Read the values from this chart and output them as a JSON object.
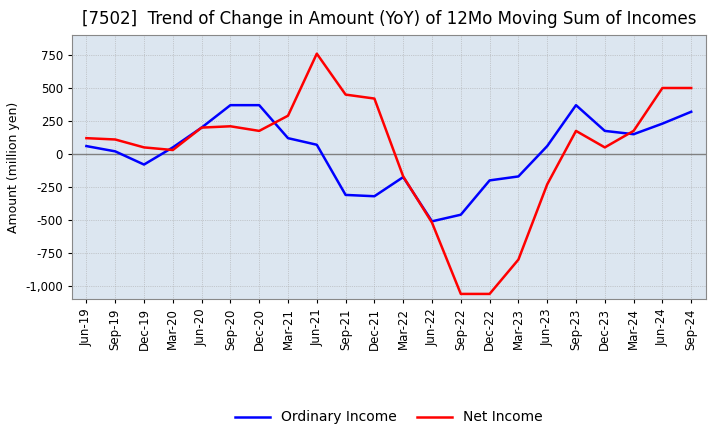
{
  "title": "[7502]  Trend of Change in Amount (YoY) of 12Mo Moving Sum of Incomes",
  "ylabel": "Amount (million yen)",
  "x_labels": [
    "Jun-19",
    "Sep-19",
    "Dec-19",
    "Mar-20",
    "Jun-20",
    "Sep-20",
    "Dec-20",
    "Mar-21",
    "Jun-21",
    "Sep-21",
    "Dec-21",
    "Mar-22",
    "Jun-22",
    "Sep-22",
    "Dec-22",
    "Mar-23",
    "Jun-23",
    "Sep-23",
    "Dec-23",
    "Mar-24",
    "Jun-24",
    "Sep-24"
  ],
  "ordinary_income": [
    60,
    20,
    -80,
    50,
    200,
    370,
    370,
    120,
    70,
    -310,
    -320,
    -175,
    -510,
    -460,
    -200,
    -170,
    60,
    370,
    175,
    150,
    230,
    320
  ],
  "net_income": [
    120,
    110,
    50,
    30,
    200,
    210,
    175,
    290,
    760,
    450,
    420,
    -170,
    -520,
    -1060,
    -1060,
    -800,
    -230,
    175,
    50,
    175,
    500,
    500
  ],
  "ordinary_color": "#0000ff",
  "net_color": "#ff0000",
  "bg_color": "#ffffff",
  "plot_bg_color": "#dce6f0",
  "grid_color": "#aaaaaa",
  "zero_line_color": "#808080",
  "ylim": [
    -1100,
    900
  ],
  "yticks": [
    -1000,
    -750,
    -500,
    -250,
    0,
    250,
    500,
    750
  ],
  "ytick_labels": [
    "-1,000",
    "-750",
    "-500",
    "-250",
    "0",
    "250",
    "500",
    "750"
  ],
  "title_fontsize": 12,
  "axis_fontsize": 9,
  "tick_fontsize": 8.5,
  "legend_fontsize": 10
}
